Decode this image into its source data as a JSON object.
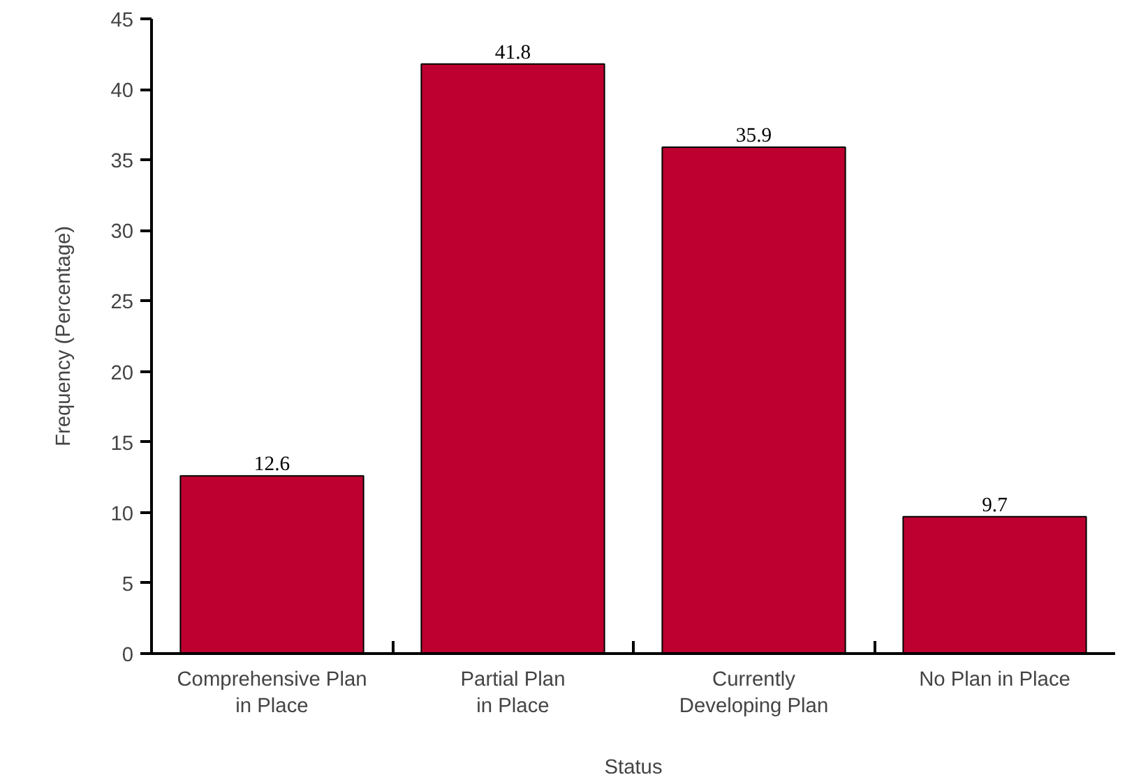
{
  "chart_data": {
    "type": "bar",
    "xlabel": "Status",
    "ylabel": "Frequency (Percentage)",
    "categories": [
      "Comprehensive Plan\nin Place",
      "Partial Plan\nin Place",
      "Currently\nDeveloping Plan",
      "No Plan in Place"
    ],
    "values": [
      12.6,
      41.8,
      35.9,
      9.7
    ],
    "color": "#bd0030",
    "ylim": [
      0,
      45
    ],
    "yticks": [
      0,
      5,
      10,
      15,
      20,
      25,
      30,
      35,
      40,
      45
    ],
    "grid": false,
    "data_labels": true
  }
}
